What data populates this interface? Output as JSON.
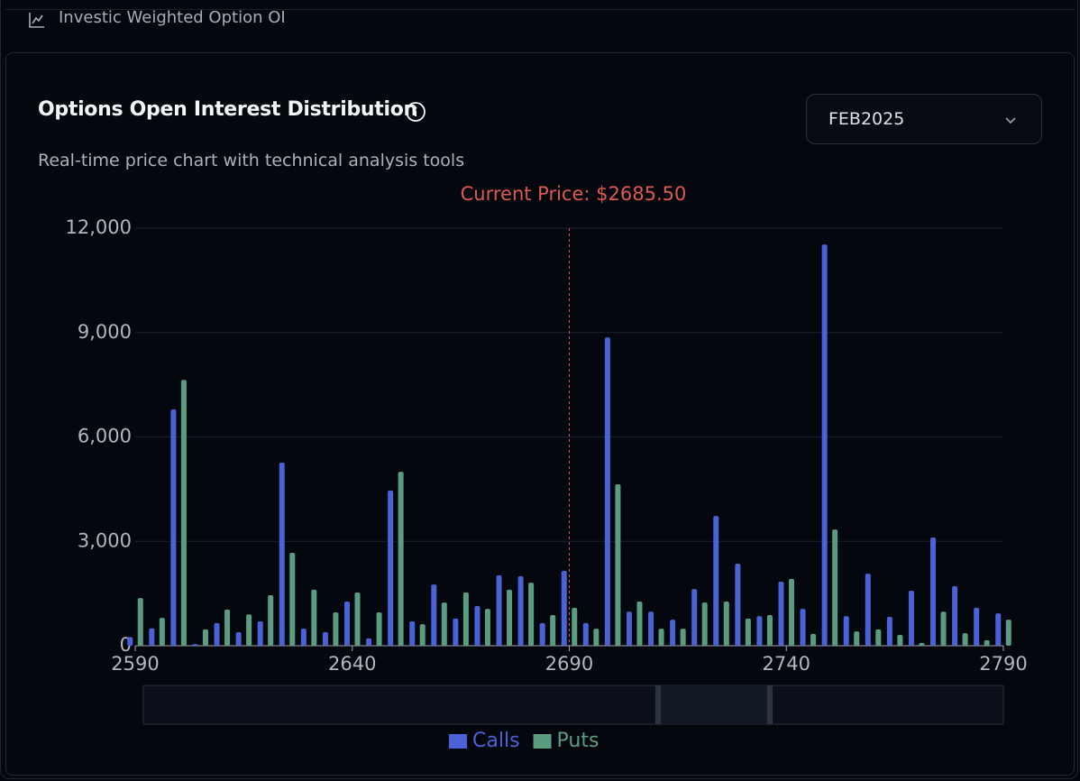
{
  "header": {
    "tab": "Investic Weighted Option OI",
    "title": "Options Open Interest Distribution",
    "subtitle": "Real-time price chart with technical analysis tools",
    "dropdown": "FEB2025"
  },
  "chart_data": {
    "type": "bar",
    "annotation": "Current Price: $2685.50",
    "reference_line_x": 2690,
    "x": [
      2590,
      2595,
      2600,
      2605,
      2610,
      2615,
      2620,
      2625,
      2630,
      2635,
      2640,
      2645,
      2650,
      2655,
      2660,
      2665,
      2670,
      2675,
      2680,
      2685,
      2690,
      2695,
      2700,
      2705,
      2710,
      2715,
      2720,
      2725,
      2730,
      2735,
      2740,
      2745,
      2750,
      2755,
      2760,
      2765,
      2770,
      2775,
      2780,
      2785,
      2790
    ],
    "series": [
      {
        "name": "Calls",
        "color": "#4a62d6",
        "values": [
          250,
          500,
          6790,
          50,
          650,
          390,
          700,
          5260,
          490,
          390,
          1270,
          210,
          4460,
          700,
          1760,
          780,
          1140,
          2020,
          2000,
          650,
          2150,
          650,
          8860,
          980,
          980,
          750,
          1630,
          3730,
          2360,
          850,
          1840,
          1060,
          11530,
          850,
          2070,
          830,
          1580,
          3110,
          1710,
          1090,
          930
        ]
      },
      {
        "name": "Puts",
        "color": "#5a9c80",
        "values": [
          1370,
          800,
          7640,
          470,
          1040,
          900,
          1450,
          2670,
          1610,
          960,
          1530,
          960,
          5000,
          620,
          1240,
          1530,
          1060,
          1610,
          1810,
          880,
          1090,
          490,
          4640,
          1270,
          490,
          490,
          1240,
          1270,
          780,
          880,
          1920,
          340,
          3340,
          410,
          470,
          310,
          80,
          980,
          360,
          160,
          750
        ]
      }
    ],
    "xlim": [
      2590,
      2790
    ],
    "xticks": [
      2590,
      2640,
      2690,
      2740,
      2790
    ],
    "ylim": [
      0,
      12000
    ],
    "yticks": [
      0,
      {
        "value": 3000,
        "label": "3,000"
      },
      {
        "value": 6000,
        "label": "6,000"
      },
      {
        "value": 9000,
        "label": "9,000"
      },
      {
        "value": 12000,
        "label": "12,000"
      }
    ],
    "grid": true,
    "legend": "bottom"
  }
}
